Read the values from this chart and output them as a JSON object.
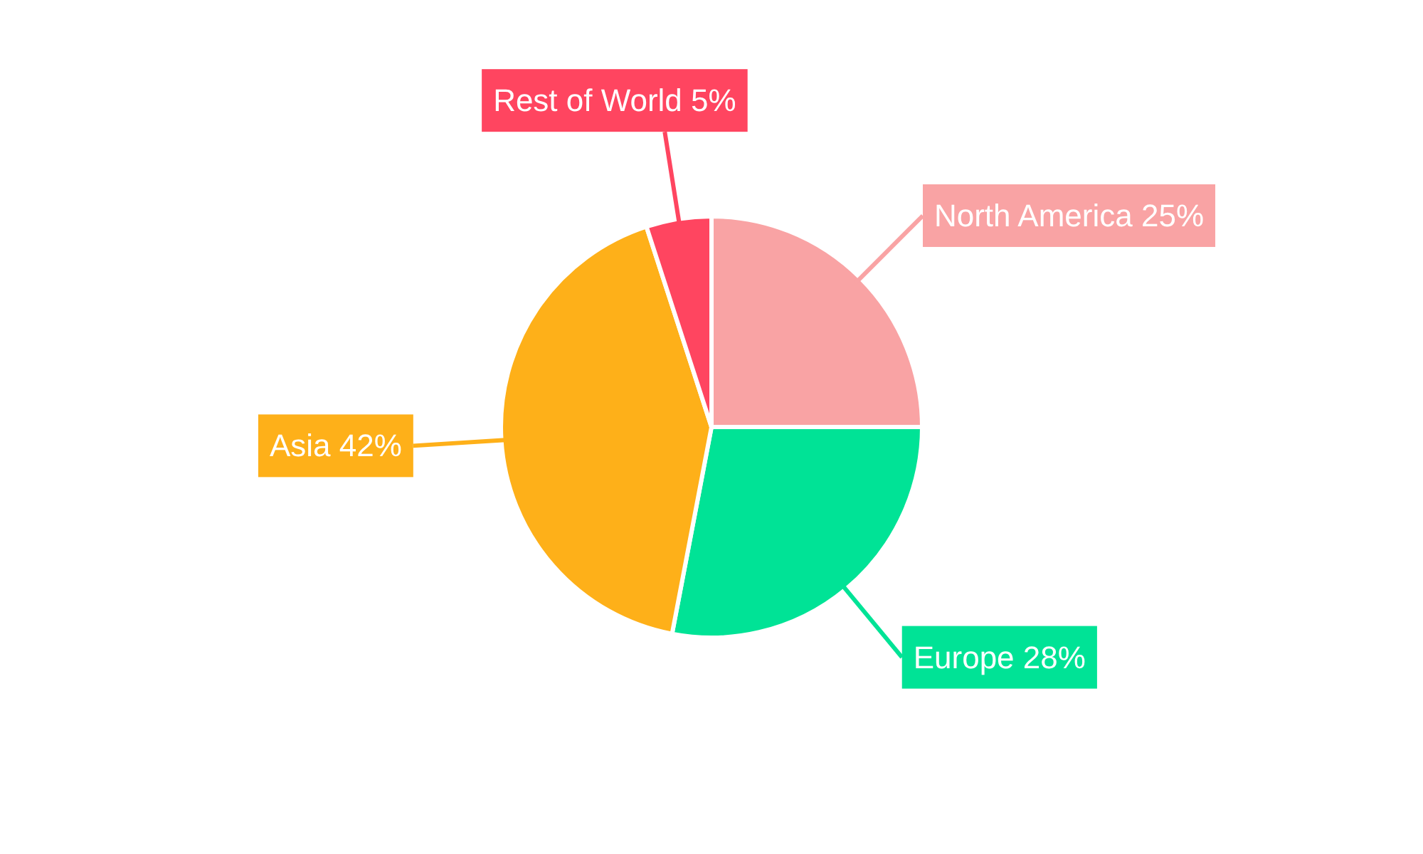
{
  "chart_data": {
    "type": "pie",
    "categories": [
      "North America",
      "Europe",
      "Asia",
      "Rest of World"
    ],
    "values": [
      25,
      28,
      42,
      5
    ],
    "value_labels": [
      "25%",
      "28%",
      "42%",
      "5%"
    ],
    "colors": [
      "#f9a3a4",
      "#00e396",
      "#feb019",
      "#ff4560"
    ]
  }
}
